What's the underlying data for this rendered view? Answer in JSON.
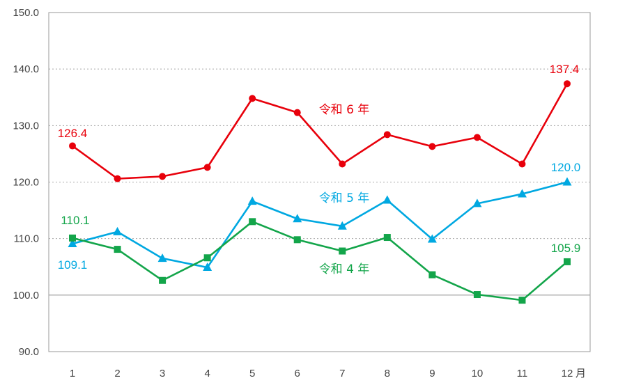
{
  "chart_data": {
    "type": "line",
    "categories": [
      "1",
      "2",
      "3",
      "4",
      "5",
      "6",
      "7",
      "8",
      "9",
      "10",
      "11",
      "12"
    ],
    "x_unit_suffix": "月",
    "ylim": [
      90.0,
      150.0
    ],
    "yticks": [
      "90.0",
      "100.0",
      "110.0",
      "120.0",
      "130.0",
      "140.0",
      "150.0"
    ],
    "grid": "horizontal dotted",
    "series": [
      {
        "name": "令和 6 年",
        "color": "#e8000b",
        "marker": "circle",
        "values": [
          126.4,
          120.6,
          121.0,
          122.6,
          134.8,
          132.3,
          123.2,
          128.4,
          126.3,
          127.9,
          123.2,
          137.4
        ],
        "first_label": "126.4",
        "last_label": "137.4"
      },
      {
        "name": "令和 5 年",
        "color": "#00a8e1",
        "marker": "triangle",
        "values": [
          109.1,
          111.2,
          106.5,
          104.9,
          116.6,
          113.5,
          112.2,
          116.8,
          109.9,
          116.2,
          117.9,
          120.0
        ],
        "first_label": "109.1",
        "last_label": "120.0"
      },
      {
        "name": "令和 4 年",
        "color": "#13a54a",
        "marker": "square",
        "values": [
          110.1,
          108.1,
          102.6,
          106.6,
          113.0,
          109.8,
          107.8,
          110.2,
          103.6,
          100.1,
          99.1,
          105.9
        ],
        "first_label": "110.1",
        "last_label": "105.9"
      }
    ]
  }
}
